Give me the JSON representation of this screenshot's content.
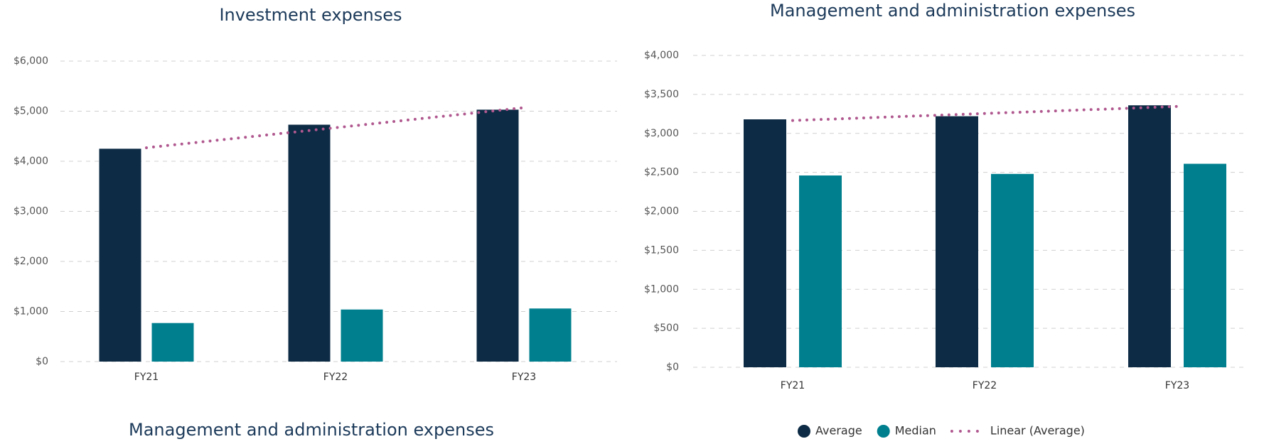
{
  "chart_data": [
    {
      "type": "bar",
      "title": "Investment expenses",
      "categories": [
        "FY21",
        "FY22",
        "FY23"
      ],
      "series": [
        {
          "color": "#0d2b45",
          "values": [
            4250,
            4730,
            5030
          ]
        },
        {
          "color": "#00808f",
          "values": [
            770,
            1040,
            1060
          ]
        },
        {
          "type": "trend",
          "color": "#b0588f",
          "values": [
            4270,
            4670,
            5070
          ]
        }
      ],
      "ylim": [
        0,
        6000
      ],
      "yticks": [
        {
          "value": 0,
          "label": "$0"
        },
        {
          "value": 1000,
          "label": "$1,000"
        },
        {
          "value": 2000,
          "label": "$2,000"
        },
        {
          "value": 3000,
          "label": "$3,000"
        },
        {
          "value": 4000,
          "label": "$4,000"
        },
        {
          "value": 5000,
          "label": "$5,000"
        },
        {
          "value": 6000,
          "label": "$6,000"
        }
      ],
      "grid": true,
      "legend": false
    },
    {
      "type": "bar",
      "title": "Management and administration expenses",
      "categories": [
        "FY21",
        "FY22",
        "FY23"
      ],
      "series": [
        {
          "name": "Average",
          "color": "#0d2b45",
          "values": [
            3180,
            3220,
            3360
          ]
        },
        {
          "name": "Median",
          "color": "#00808f",
          "values": [
            2460,
            2480,
            2610
          ]
        },
        {
          "name": "Linear (Average)",
          "type": "trend",
          "color": "#b0588f",
          "values": [
            3165,
            3255,
            3345
          ]
        }
      ],
      "ylim": [
        0,
        4000
      ],
      "yticks": [
        {
          "value": 0,
          "label": "$0"
        },
        {
          "value": 500,
          "label": "$500"
        },
        {
          "value": 1000,
          "label": "$1,000"
        },
        {
          "value": 1500,
          "label": "$1,500"
        },
        {
          "value": 2000,
          "label": "$2,000"
        },
        {
          "value": 2500,
          "label": "$2,500"
        },
        {
          "value": 3000,
          "label": "$3,000"
        },
        {
          "value": 3500,
          "label": "$3,500"
        },
        {
          "value": 4000,
          "label": "$4,000"
        }
      ],
      "grid": true,
      "legend": "bottom"
    }
  ],
  "heading": "Management and administration expenses"
}
